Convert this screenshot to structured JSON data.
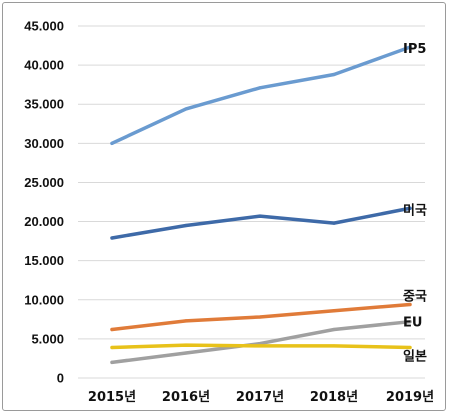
{
  "chart_data": {
    "type": "line",
    "title": "",
    "xlabel": "",
    "ylabel": "",
    "categories": [
      "2015년",
      "2016년",
      "2017년",
      "2018년",
      "2019년"
    ],
    "ylim": [
      0,
      45000
    ],
    "y_ticks": [
      "0",
      "5.000",
      "10.000",
      "15.000",
      "20.000",
      "25.000",
      "30.000",
      "35.000",
      "40.000",
      "45.000"
    ],
    "grid": true,
    "legend": "labels at line ends",
    "series": [
      {
        "name": "IP5",
        "color": "#6a9bd0",
        "values": [
          30000,
          34400,
          37100,
          38800,
          42300
        ]
      },
      {
        "name": "미국",
        "color": "#3e6aa8",
        "values": [
          17900,
          19500,
          20700,
          19800,
          21700
        ]
      },
      {
        "name": "중국",
        "color": "#e07b39",
        "values": [
          6200,
          7300,
          7800,
          8600,
          9400
        ]
      },
      {
        "name": "EU",
        "color": "#a0a0a0",
        "values": [
          2000,
          3200,
          4400,
          6200,
          7200
        ]
      },
      {
        "name": "일본",
        "color": "#e8c21a",
        "values": [
          3900,
          4200,
          4100,
          4100,
          3900
        ]
      }
    ]
  }
}
